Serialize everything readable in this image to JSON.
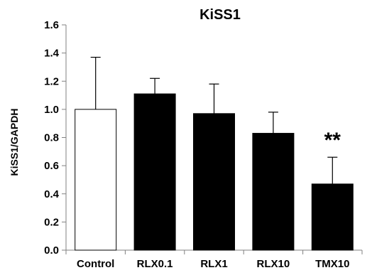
{
  "chart_data": {
    "type": "bar",
    "title": "KiSS1",
    "ylabel": "KiSS1/GAPDH",
    "xlabel": "",
    "categories": [
      "Control",
      "RLX0.1",
      "RLX1",
      "RLX10",
      "TMX10"
    ],
    "values": [
      1.0,
      1.11,
      0.97,
      0.83,
      0.47
    ],
    "errors": [
      0.37,
      0.11,
      0.21,
      0.15,
      0.19
    ],
    "bar_colors": [
      "#ffffff",
      "#000000",
      "#000000",
      "#000000",
      "#000000"
    ],
    "ylim": [
      0,
      1.6
    ],
    "yticks": [
      "0.0",
      "0.2",
      "0.4",
      "0.6",
      "0.8",
      "1.0",
      "1.2",
      "1.4",
      "1.6"
    ],
    "grid": false,
    "legend": "none",
    "annotations": [
      {
        "category": "TMX10",
        "text": "**"
      }
    ]
  }
}
